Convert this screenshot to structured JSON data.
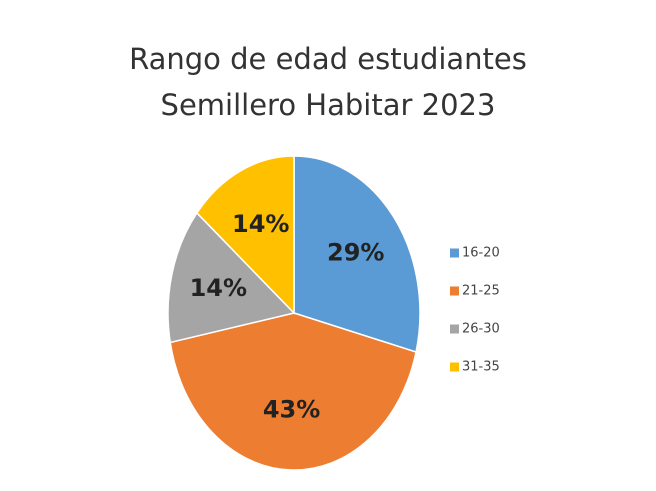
{
  "chart_data": {
    "type": "pie",
    "title": "Rango de edad estudiantes Semillero Habitar 2023",
    "categories": [
      "16-20",
      "21-25",
      "26-30",
      "31-35"
    ],
    "values": [
      29,
      43,
      14,
      14
    ],
    "value_labels": [
      "29%",
      "43%",
      "14%",
      "14%"
    ],
    "colors": [
      "#5b9bd5",
      "#ed7d31",
      "#a5a5a5",
      "#ffc000"
    ],
    "legend": "right"
  }
}
